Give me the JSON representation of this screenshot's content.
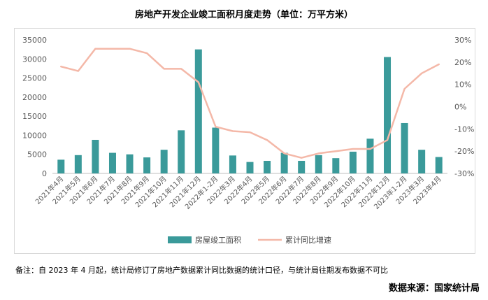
{
  "chart_data": {
    "type": "bar+line",
    "title": "房地产开发企业竣工面积月度走势（单位：万平方米）",
    "categories": [
      "2021年4月",
      "2021年5月",
      "2021年6月",
      "2021年7月",
      "2021年8月",
      "2021年9月",
      "2021年10月",
      "2021年11月",
      "2021年12月",
      "2022年1-2月",
      "2022年3月",
      "2022年4月",
      "2022年5月",
      "2022年6月",
      "2022年7月",
      "2022年8月",
      "2022年9月",
      "2022年10月",
      "2022年11月",
      "2022年12月",
      "2023年1-2月",
      "2023年3月",
      "2023年4月"
    ],
    "series": [
      {
        "name": "房屋竣工面积",
        "type": "bar",
        "axis": "left",
        "color": "#3a9a9a",
        "values": [
          3600,
          4800,
          8800,
          5400,
          5000,
          4200,
          6200,
          11300,
          32500,
          12000,
          4700,
          3000,
          3300,
          5400,
          3300,
          4800,
          4000,
          5700,
          9100,
          30500,
          13200,
          6200,
          4300
        ]
      },
      {
        "name": "累计同比增速",
        "type": "line",
        "axis": "right",
        "color": "#f4b8a8",
        "values": [
          18,
          16,
          26,
          26,
          26,
          24,
          17,
          17,
          11,
          -9,
          -11,
          -11.5,
          -15,
          -21,
          -23,
          -21,
          -20,
          -19,
          -19,
          -15,
          8,
          15,
          19
        ]
      }
    ],
    "y_left": {
      "min": 0,
      "max": 35000,
      "ticks": [
        0,
        5000,
        10000,
        15000,
        20000,
        25000,
        30000,
        35000
      ],
      "tick_labels": [
        "0",
        "5000",
        "10000",
        "15000",
        "20000",
        "25000",
        "30000",
        "35000"
      ]
    },
    "y_right": {
      "min": -30,
      "max": 30,
      "ticks": [
        -30,
        -20,
        -10,
        0,
        10,
        20,
        30
      ],
      "tick_labels": [
        "-30%",
        "-20%",
        "-10%",
        "0%",
        "10%",
        "20%",
        "30%"
      ]
    },
    "grid": false,
    "legend_position": "bottom"
  },
  "note": "备注：自 2023 年 4 月起，统计局修订了房地产数据累计同比数据的统计口径，与统计局往期发布数据不可比",
  "source": "数据来源：国家统计局"
}
